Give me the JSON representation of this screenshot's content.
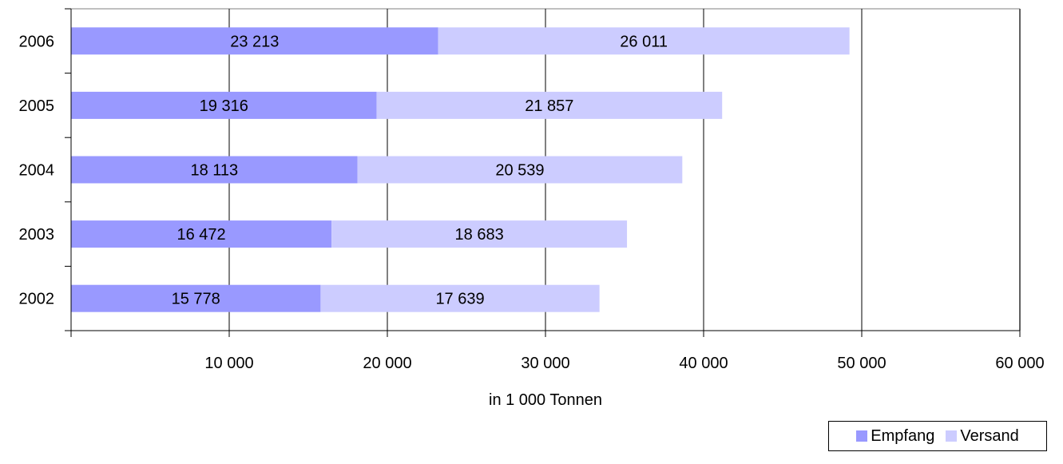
{
  "chart_data": {
    "type": "bar",
    "orientation": "horizontal",
    "stacked": true,
    "categories": [
      "2002",
      "2003",
      "2004",
      "2005",
      "2006"
    ],
    "series": [
      {
        "name": "Empfang",
        "values": [
          15778,
          16472,
          18113,
          19316,
          23213
        ],
        "labels": [
          "15 778",
          "16 472",
          "18 113",
          "19 316",
          "23 213"
        ]
      },
      {
        "name": "Versand",
        "values": [
          17639,
          18683,
          20539,
          21857,
          26011
        ],
        "labels": [
          "17 639",
          "18 683",
          "20 539",
          "21 857",
          "26 011"
        ]
      }
    ],
    "xlabel": "in 1 000 Tonnen",
    "xlim": [
      0,
      60000
    ],
    "xticks": [
      10000,
      20000,
      30000,
      40000,
      50000,
      60000
    ],
    "xtick_labels": [
      "10 000",
      "20 000",
      "30 000",
      "40 000",
      "50 000",
      "60 000"
    ],
    "grid": "vertical",
    "legend_position": "bottom-right",
    "colors": {
      "Empfang": "#9999ff",
      "Versand": "#ccccff",
      "grid": "#000000",
      "frame": "#c0c0c0"
    }
  }
}
